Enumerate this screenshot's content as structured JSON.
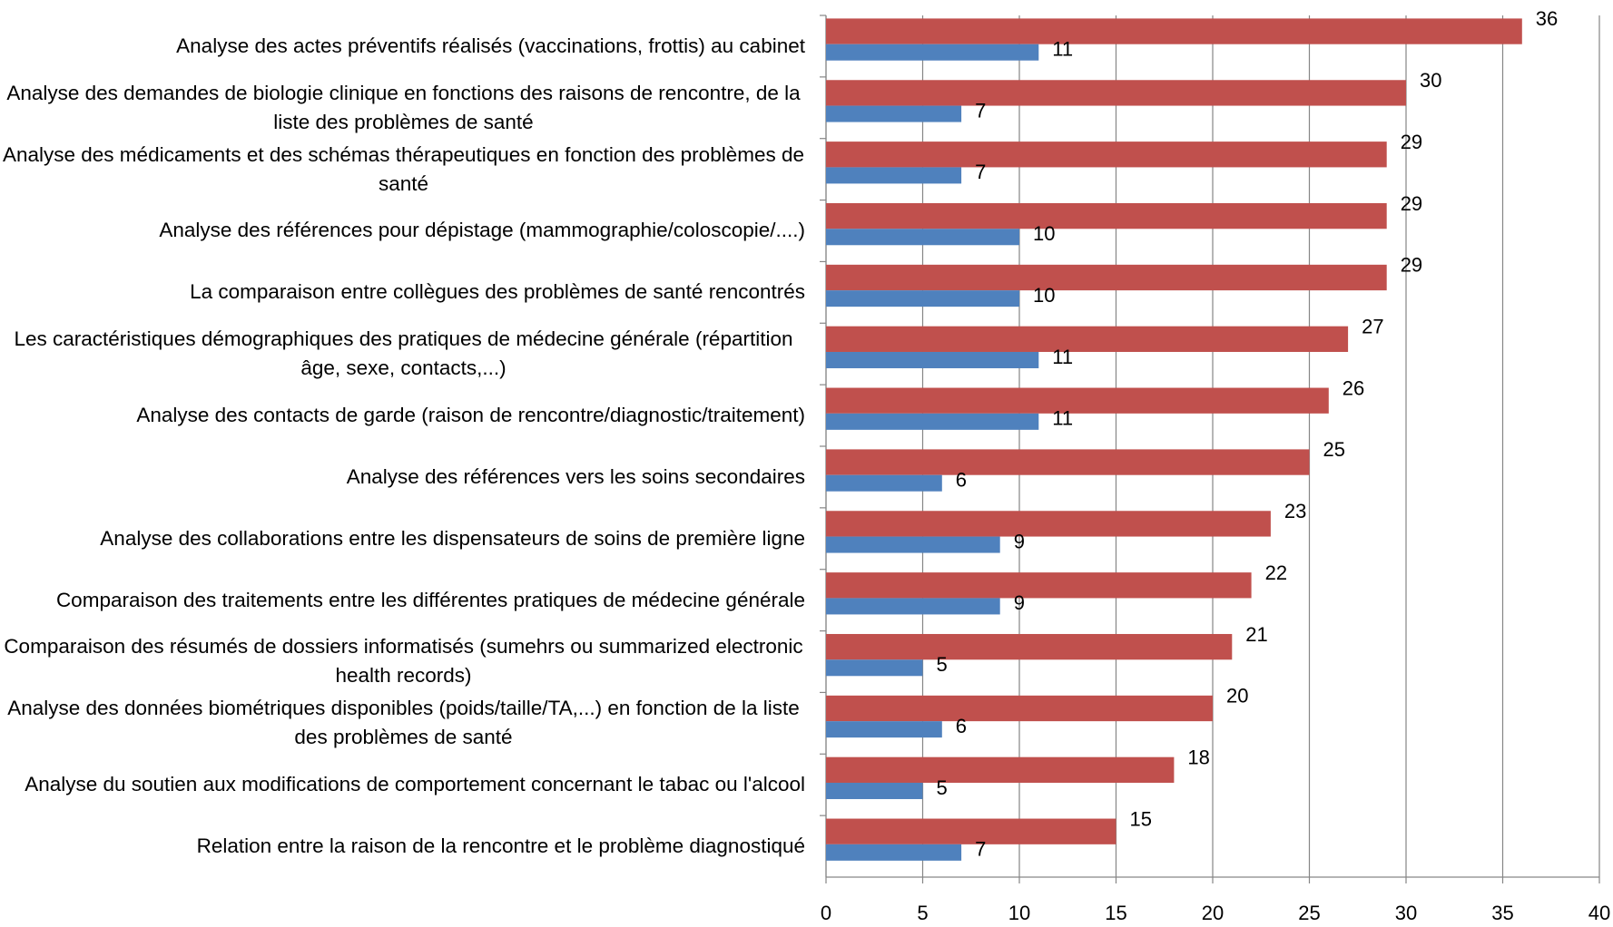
{
  "chart_data": {
    "type": "bar",
    "orientation": "horizontal",
    "categories": [
      "Analyse des actes préventifs réalisés (vaccinations, frottis) au cabinet",
      "Analyse des demandes de biologie clinique en fonctions des raisons de rencontre, de la liste des problèmes de santé",
      "Analyse des médicaments et des schémas thérapeutiques en fonction des problèmes de santé",
      "Analyse des références pour dépistage (mammographie/coloscopie/....)",
      "La comparaison entre collègues des problèmes de santé rencontrés",
      "Les caractéristiques démographiques des pratiques de médecine générale (répartition âge, sexe, contacts,...)",
      "Analyse des contacts de garde (raison de rencontre/diagnostic/traitement)",
      "Analyse des références vers les soins secondaires",
      "Analyse des collaborations entre les dispensateurs de soins de première ligne",
      "Comparaison des traitements entre les différentes pratiques de médecine générale",
      "Comparaison des résumés de dossiers informatisés (sumehrs ou summarized electronic health records)",
      "Analyse des données biométriques disponibles (poids/taille/TA,...) en fonction de la liste des problèmes de santé",
      "Analyse du soutien aux modifications de comportement concernant le tabac ou l'alcool",
      "Relation entre la raison de la rencontre et le problème diagnostiqué"
    ],
    "series": [
      {
        "color": "#c0504d",
        "values": [
          36,
          30,
          29,
          29,
          29,
          27,
          26,
          25,
          23,
          22,
          21,
          20,
          18,
          15
        ]
      },
      {
        "color": "#4f81bd",
        "values": [
          11,
          7,
          7,
          10,
          10,
          11,
          11,
          6,
          9,
          9,
          5,
          6,
          5,
          7
        ]
      }
    ],
    "xlim": [
      0,
      40
    ],
    "xticks": [
      0,
      5,
      10,
      15,
      20,
      25,
      30,
      35,
      40
    ],
    "grid": true
  }
}
